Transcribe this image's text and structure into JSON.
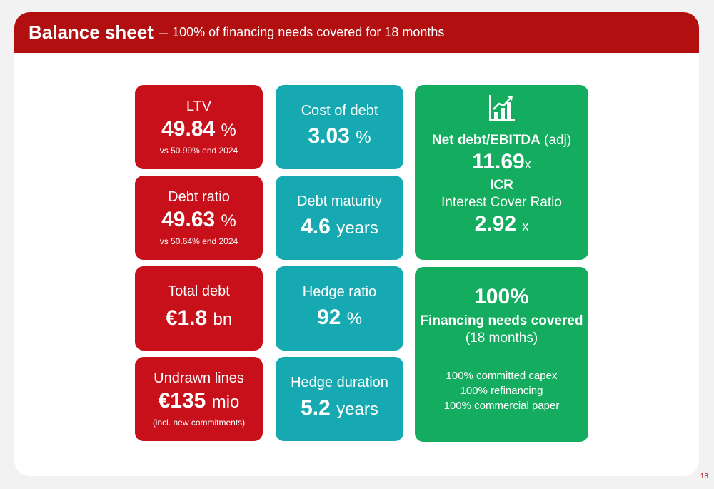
{
  "header": {
    "title": "Balance sheet",
    "dash": "–",
    "subtitle": "100% of financing needs covered for 18 months"
  },
  "cards": {
    "ltv": {
      "label": "LTV",
      "value": "49.84",
      "unit": "%",
      "note": "vs 50.99% end 2024"
    },
    "debt_ratio": {
      "label": "Debt ratio",
      "value": "49.63",
      "unit": "%",
      "note": "vs 50.64% end 2024"
    },
    "total_debt": {
      "label": "Total debt",
      "value": "€1.8",
      "unit": "bn"
    },
    "undrawn": {
      "label": "Undrawn lines",
      "value": "€135",
      "unit": "mio",
      "note": "(incl. new commitments)"
    },
    "cost_of_debt": {
      "label": "Cost of debt",
      "value": "3.03",
      "unit": "%"
    },
    "debt_maturity": {
      "label": "Debt maturity",
      "value": "4.6",
      "unit": "years"
    },
    "hedge_ratio": {
      "label": "Hedge ratio",
      "value": "92",
      "unit": "%"
    },
    "hedge_duration": {
      "label": "Hedge duration",
      "value": "5.2",
      "unit": "years"
    },
    "net_debt": {
      "icon": "bar-chart-growth-icon",
      "label_bold": "Net debt/EBITDA",
      "label_rest": "(adj)",
      "value": "11.69",
      "unit": "x",
      "icr_title": "ICR",
      "icr_label": "Interest Cover Ratio",
      "icr_value": "2.92",
      "icr_unit": "x"
    },
    "financing": {
      "percent": "100%",
      "title": "Financing needs covered",
      "period": "(18 months)",
      "lines": [
        "100% committed capex",
        "100% refinancing",
        "100% commercial paper"
      ]
    }
  },
  "footer": {
    "page_number": "18"
  },
  "colors": {
    "red": "#c8101a",
    "header_red": "#b10f10",
    "teal": "#17a9b1",
    "green": "#14ad5f"
  }
}
